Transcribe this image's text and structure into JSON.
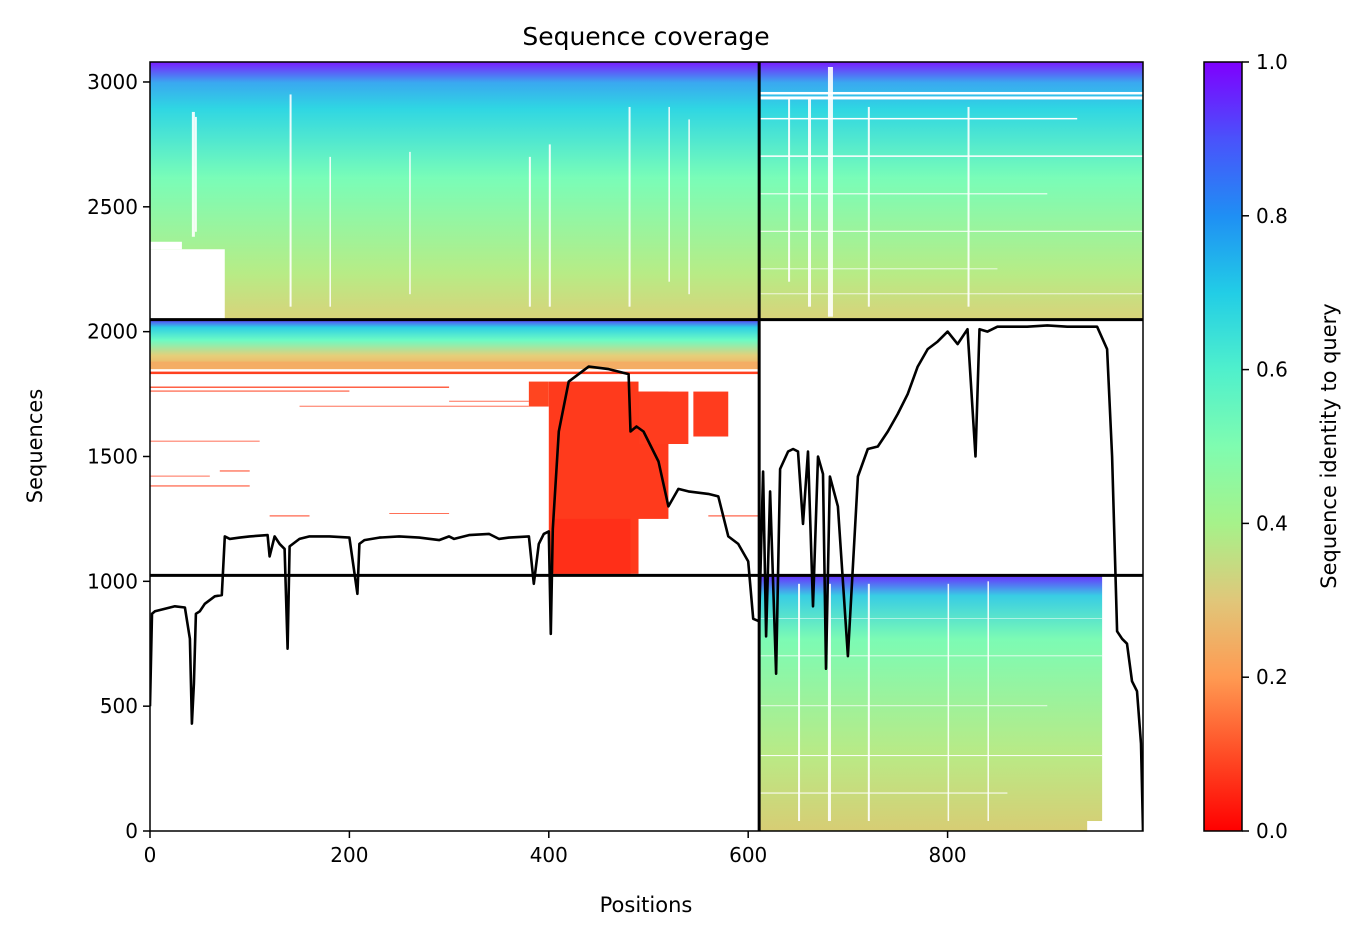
{
  "chart_data": {
    "type": "heatmap",
    "title": "Sequence coverage",
    "xlabel": "Positions",
    "ylabel": "Sequences",
    "xlim": [
      0,
      996
    ],
    "ylim": [
      0,
      3080
    ],
    "x_ticks": [
      0,
      200,
      400,
      600,
      800
    ],
    "y_ticks": [
      0,
      500,
      1000,
      1500,
      2000,
      2500,
      3000
    ],
    "colorbar": {
      "label": "Sequence identity to query",
      "range": [
        0,
        1
      ],
      "ticks": [
        "0.0",
        "0.2",
        "0.4",
        "0.6",
        "0.8",
        "1.0"
      ],
      "colormap": "rainbow_r",
      "colors": [
        "#ff0000",
        "#ff7f40",
        "#cfe07e",
        "#7fffbe",
        "#31d4e6",
        "#1f8ff4",
        "#7f00ff"
      ]
    },
    "divider_lines": {
      "vertical_at_position": 611,
      "horizontal_at_sequence": [
        1024,
        2048
      ]
    },
    "blocks": [
      {
        "x": [
          0,
          611
        ],
        "y": [
          2048,
          3080
        ],
        "identity_bottom": 0.3,
        "identity_top": 1.0
      },
      {
        "x": [
          611,
          996
        ],
        "y": [
          2048,
          3080
        ],
        "identity_bottom": 0.3,
        "identity_top": 1.0
      },
      {
        "x": [
          0,
          611
        ],
        "y": [
          1024,
          2048
        ],
        "identity_bottom": 0.0,
        "identity_top": 1.0
      },
      {
        "x": [
          611,
          996
        ],
        "y": [
          0,
          1024
        ],
        "identity_bottom": 0.3,
        "identity_top": 1.0
      }
    ],
    "coverage_line": {
      "color": "#000000",
      "x": [
        0,
        2,
        5,
        15,
        25,
        35,
        40,
        42,
        44,
        46,
        50,
        55,
        65,
        72,
        75,
        80,
        90,
        100,
        118,
        120,
        125,
        130,
        135,
        138,
        140,
        150,
        160,
        180,
        200,
        208,
        210,
        215,
        230,
        250,
        270,
        290,
        300,
        305,
        320,
        340,
        350,
        360,
        380,
        385,
        390,
        395,
        400,
        402,
        404,
        410,
        420,
        440,
        460,
        480,
        482,
        488,
        495,
        505,
        510,
        520,
        530,
        540,
        560,
        570,
        580,
        590,
        600,
        605,
        611,
        612,
        615,
        618,
        622,
        628,
        632,
        640,
        645,
        650,
        655,
        660,
        665,
        670,
        675,
        678,
        682,
        690,
        700,
        710,
        720,
        730,
        740,
        750,
        760,
        770,
        780,
        790,
        800,
        810,
        820,
        828,
        832,
        840,
        850,
        860,
        880,
        900,
        920,
        940,
        950,
        960,
        965,
        970,
        975,
        980,
        985,
        990,
        994,
        996
      ],
      "y": [
        500,
        870,
        880,
        890,
        900,
        895,
        770,
        430,
        590,
        870,
        880,
        910,
        940,
        945,
        1180,
        1170,
        1175,
        1180,
        1185,
        1100,
        1180,
        1150,
        1130,
        730,
        1140,
        1170,
        1180,
        1180,
        1175,
        950,
        1150,
        1165,
        1175,
        1180,
        1175,
        1165,
        1180,
        1170,
        1185,
        1190,
        1170,
        1175,
        1180,
        990,
        1150,
        1190,
        1200,
        790,
        1210,
        1600,
        1800,
        1860,
        1850,
        1830,
        1600,
        1620,
        1600,
        1520,
        1480,
        1300,
        1370,
        1360,
        1350,
        1340,
        1180,
        1150,
        1080,
        850,
        840,
        1000,
        1440,
        780,
        1360,
        630,
        1450,
        1520,
        1530,
        1520,
        1230,
        1520,
        900,
        1500,
        1430,
        650,
        1420,
        1300,
        700,
        1420,
        1530,
        1540,
        1600,
        1670,
        1750,
        1860,
        1930,
        1960,
        2000,
        1950,
        2010,
        1500,
        2010,
        2000,
        2020,
        2020,
        2020,
        2025,
        2020,
        2020,
        2020,
        1930,
        1500,
        800,
        770,
        750,
        600,
        560,
        350,
        0
      ]
    }
  }
}
